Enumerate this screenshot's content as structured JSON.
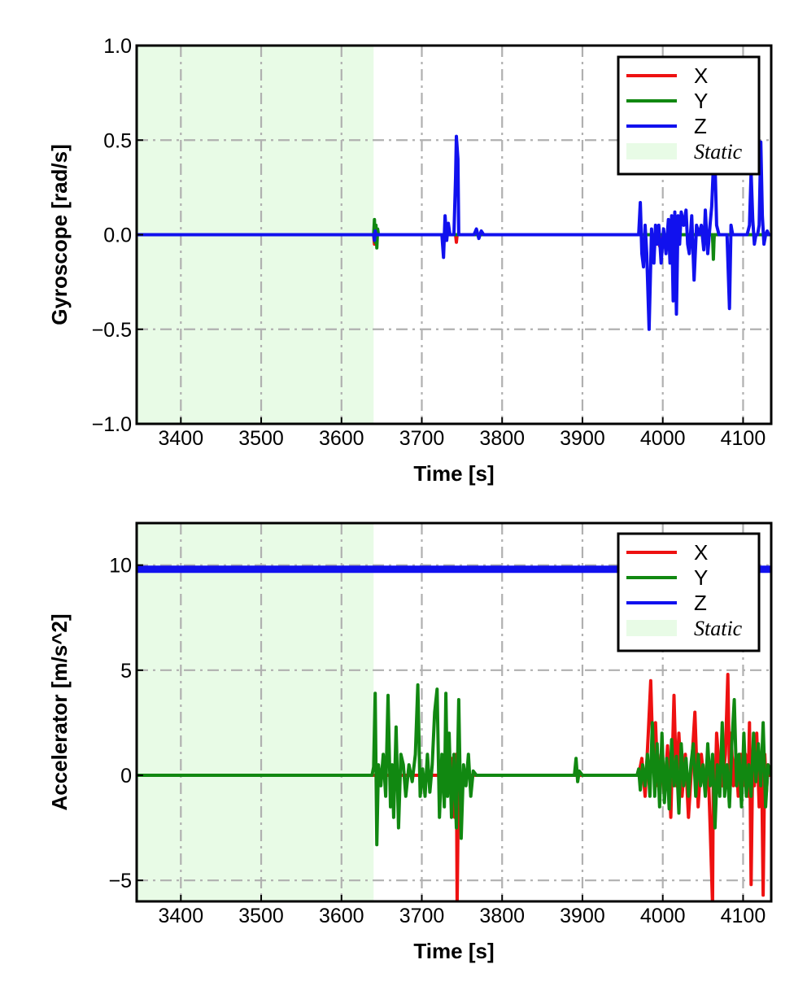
{
  "colors": {
    "x": "#ee1111",
    "y": "#118811",
    "z": "#1111ee",
    "static": "#e8fbe6",
    "grid": "#b0b0b0"
  },
  "chart_data": [
    {
      "type": "line",
      "xlabel": "Time [s]",
      "ylabel": "Gyroscope [rad/s]",
      "xlim": [
        3345,
        4135
      ],
      "ylim": [
        -1.0,
        1.0
      ],
      "xticks": [
        3400,
        3500,
        3600,
        3700,
        3800,
        3900,
        4000,
        4100
      ],
      "yticks": [
        1.0,
        0.5,
        0.0,
        -0.5,
        -1.0
      ],
      "ytick_labels": [
        "1.0",
        "0.5",
        "0.0",
        "−0.5",
        "−1.0"
      ],
      "grid": true,
      "legend": {
        "placement": "top-right",
        "entries": [
          "X",
          "Y",
          "Z"
        ],
        "static_label": "Static"
      },
      "static_span": [
        3345,
        3640
      ],
      "series": [
        {
          "name": "X",
          "x": [
            3345,
            3640,
            3641,
            3642,
            3643,
            3644,
            3645,
            3700,
            3742,
            3743,
            3744,
            3745,
            3800,
            3995,
            3996,
            3997,
            4062,
            4063,
            4064,
            4135
          ],
          "y": [
            0.0,
            0.0,
            -0.05,
            0.04,
            -0.03,
            0.02,
            0.0,
            0.0,
            0.0,
            -0.04,
            0.0,
            0.0,
            0.0,
            0.0,
            -0.06,
            0.0,
            0.0,
            -0.08,
            0.0,
            0.0
          ]
        },
        {
          "name": "Y",
          "x": [
            3345,
            3640,
            3641,
            3642,
            3643,
            3644,
            3645,
            3646,
            3700,
            4001,
            4002,
            4003,
            4062,
            4063,
            4064,
            4135
          ],
          "y": [
            0.0,
            0.0,
            0.08,
            -0.04,
            0.05,
            -0.07,
            0.03,
            0.0,
            0.0,
            0.0,
            -0.05,
            0.0,
            0.0,
            -0.13,
            0.0,
            0.0
          ]
        },
        {
          "name": "Z",
          "x": [
            3345,
            3640,
            3641,
            3642,
            3643,
            3700,
            3725,
            3727,
            3729,
            3731,
            3733,
            3735,
            3740,
            3742,
            3743,
            3745,
            3746,
            3748,
            3765,
            3768,
            3771,
            3774,
            3777,
            3780,
            3970,
            3972,
            3974,
            3976,
            3978,
            3980,
            3983,
            3986,
            3989,
            3991,
            3993,
            3995,
            3998,
            4001,
            4004,
            4007,
            4009,
            4011,
            4013,
            4015,
            4017,
            4019,
            4021,
            4023,
            4026,
            4029,
            4031,
            4033,
            4036,
            4039,
            4042,
            4045,
            4048,
            4051,
            4053,
            4056,
            4059,
            4061,
            4063,
            4065,
            4067,
            4070,
            4074,
            4077,
            4080,
            4083,
            4085,
            4087,
            4090,
            4093,
            4096,
            4100,
            4105,
            4108,
            4110,
            4112,
            4114,
            4116,
            4118,
            4120,
            4122,
            4124,
            4126,
            4128,
            4130,
            4132,
            4135
          ],
          "y": [
            0.0,
            0.0,
            -0.03,
            0.02,
            0.0,
            0.0,
            0.0,
            -0.12,
            0.1,
            -0.03,
            0.06,
            0.0,
            0.0,
            0.3,
            0.52,
            0.4,
            0.0,
            0.0,
            0.0,
            0.03,
            -0.02,
            0.02,
            0.0,
            0.0,
            0.0,
            0.17,
            -0.1,
            -0.17,
            0.05,
            -0.1,
            -0.5,
            0.03,
            -0.15,
            0.05,
            -0.05,
            0.05,
            -0.15,
            0.03,
            -0.1,
            0.08,
            -0.15,
            0.1,
            -0.35,
            0.12,
            -0.42,
            0.1,
            -0.05,
            0.12,
            0.05,
            0.13,
            -0.05,
            -0.1,
            0.1,
            -0.24,
            0.05,
            0.0,
            0.05,
            -0.08,
            0.13,
            -0.1,
            0.06,
            0.15,
            0.36,
            0.38,
            0.05,
            0.0,
            0.0,
            0.0,
            0.0,
            -0.39,
            0.05,
            0.0,
            0.0,
            0.0,
            0.0,
            0.0,
            0.0,
            0.05,
            0.33,
            0.08,
            -0.05,
            0.0,
            0.0,
            0.05,
            0.49,
            0.1,
            -0.05,
            0.0,
            0.02,
            0.0,
            0.0
          ]
        }
      ]
    },
    {
      "type": "line",
      "xlabel": "Time [s]",
      "ylabel": "Accelerator [m/s^2]",
      "xlim": [
        3345,
        4135
      ],
      "ylim": [
        -6.0,
        12.0
      ],
      "xticks": [
        3400,
        3500,
        3600,
        3700,
        3800,
        3900,
        4000,
        4100
      ],
      "yticks": [
        10,
        5,
        0,
        -5
      ],
      "ytick_labels": [
        "10",
        "5",
        "0",
        "−5"
      ],
      "grid": true,
      "legend": {
        "placement": "top-right",
        "entries": [
          "X",
          "Y",
          "Z"
        ],
        "static_label": "Static"
      },
      "static_span": [
        3345,
        3640
      ],
      "series": [
        {
          "name": "X",
          "x": [
            3345,
            3640,
            3650,
            3700,
            3735,
            3738,
            3741,
            3743,
            3744,
            3746,
            3749,
            3752,
            3900,
            3970,
            3974,
            3978,
            3982,
            3985,
            3988,
            3991,
            3994,
            3998,
            4002,
            4006,
            4010,
            4014,
            4017,
            4020,
            4024,
            4028,
            4032,
            4036,
            4040,
            4044,
            4048,
            4052,
            4056,
            4059,
            4062,
            4063,
            4065,
            4067,
            4070,
            4074,
            4078,
            4081,
            4083,
            4085,
            4088,
            4091,
            4094,
            4097,
            4100,
            4103,
            4106,
            4108,
            4110,
            4112,
            4114,
            4117,
            4120,
            4123,
            4125,
            4127,
            4129,
            4131,
            4133,
            4135
          ],
          "y": [
            0.0,
            0.0,
            0.0,
            0.0,
            0.0,
            0.8,
            -2.0,
            1.0,
            -6.2,
            0.5,
            -0.5,
            0.0,
            0.0,
            0.0,
            0.8,
            -1.0,
            2.0,
            4.5,
            0.5,
            2.5,
            -0.5,
            1.0,
            -1.0,
            1.4,
            -2.0,
            3.8,
            -0.5,
            2.0,
            -1.0,
            1.0,
            -2.0,
            0.5,
            3.0,
            -1.5,
            1.0,
            -0.5,
            1.0,
            -2.5,
            -6.2,
            0.5,
            -1.0,
            2.0,
            0.5,
            -0.5,
            1.0,
            4.8,
            0.0,
            2.0,
            -0.5,
            1.0,
            -1.0,
            1.0,
            -0.5,
            1.0,
            -1.0,
            2.5,
            -5.2,
            1.0,
            -0.5,
            2.0,
            -1.5,
            0.5,
            -5.7,
            1.0,
            -0.8,
            0.5,
            0.0,
            0.0
          ]
        },
        {
          "name": "Y",
          "x": [
            3345,
            3638,
            3640,
            3642,
            3644,
            3646,
            3649,
            3652,
            3655,
            3658,
            3661,
            3663,
            3665,
            3668,
            3671,
            3674,
            3677,
            3680,
            3684,
            3688,
            3692,
            3695,
            3698,
            3701,
            3704,
            3707,
            3710,
            3713,
            3716,
            3719,
            3722,
            3725,
            3728,
            3730,
            3732,
            3734,
            3737,
            3740,
            3743,
            3746,
            3749,
            3752,
            3755,
            3758,
            3761,
            3764,
            3768,
            3772,
            3776,
            3780,
            3890,
            3892,
            3894,
            3896,
            3900,
            3950,
            3968,
            3970,
            3972,
            3975,
            3978,
            3981,
            3984,
            3987,
            3990,
            3993,
            3996,
            3999,
            4002,
            4005,
            4008,
            4011,
            4014,
            4017,
            4020,
            4023,
            4026,
            4029,
            4032,
            4035,
            4038,
            4041,
            4044,
            4047,
            4050,
            4053,
            4056,
            4059,
            4062,
            4065,
            4068,
            4071,
            4074,
            4077,
            4080,
            4083,
            4086,
            4089,
            4092,
            4095,
            4098,
            4101,
            4104,
            4107,
            4110,
            4113,
            4116,
            4119,
            4122,
            4125,
            4128,
            4131,
            4135
          ],
          "y": [
            0.0,
            0.0,
            0.4,
            3.9,
            -3.3,
            0.5,
            -0.5,
            1.0,
            -1.0,
            3.8,
            -1.5,
            0.5,
            -2.0,
            2.3,
            -2.5,
            1.0,
            0.5,
            -1.0,
            0.5,
            -0.3,
            1.0,
            4.3,
            -1.0,
            0.3,
            -1.0,
            1.0,
            -0.8,
            0.5,
            3.0,
            4.1,
            -2.0,
            1.0,
            -1.5,
            3.9,
            -1.0,
            2.0,
            -2.0,
            1.0,
            -2.5,
            3.6,
            -3.0,
            0.5,
            -0.5,
            1.0,
            -1.0,
            0.2,
            0.0,
            0.0,
            0.0,
            0.0,
            0.0,
            0.8,
            -0.3,
            0.2,
            0.0,
            0.0,
            0.0,
            0.3,
            -0.7,
            0.5,
            -0.5,
            1.0,
            -1.0,
            2.5,
            -1.0,
            1.5,
            -1.5,
            2.0,
            -1.3,
            0.8,
            -1.6,
            1.7,
            -0.5,
            0.9,
            -1.8,
            1.5,
            -0.5,
            0.8,
            -1.0,
            0.5,
            1.5,
            -1.0,
            1.0,
            -0.5,
            0.5,
            -1.0,
            1.5,
            -0.5,
            1.0,
            -2.5,
            0.5,
            -1.0,
            2.5,
            -1.0,
            0.5,
            -1.5,
            1.5,
            3.6,
            -0.5,
            1.0,
            -1.5,
            2.0,
            -1.0,
            0.5,
            -1.0,
            2.0,
            -0.3,
            1.5,
            -0.5,
            2.5,
            -1.5,
            0.5,
            0.0
          ]
        },
        {
          "name": "Z",
          "x": [
            3345,
            4135
          ],
          "y": [
            9.8,
            9.8
          ]
        }
      ]
    }
  ]
}
